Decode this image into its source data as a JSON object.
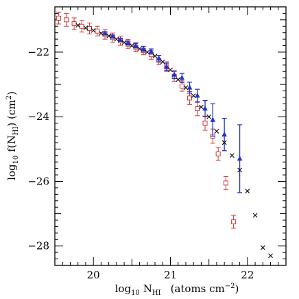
{
  "chart_data": {
    "type": "scatter",
    "xlabel": {
      "prefix": "log",
      "prefix_sub": "10",
      "var": "N",
      "var_sub": "HI",
      "units": "(atoms cm",
      "units_sup": "−2",
      "units_end": ")"
    },
    "ylabel": {
      "prefix": "log",
      "prefix_sub": "10",
      "f": "f(N",
      "f_sub": "HI",
      "f_end": ") (cm",
      "f_sup": "2",
      "end": ")"
    },
    "xlim": [
      19.5,
      22.5
    ],
    "ylim": [
      -28.6,
      -20.6
    ],
    "xticks": [
      20,
      21,
      22
    ],
    "xtick_labels": [
      "20",
      "21",
      "22"
    ],
    "yticks": [
      -22,
      -24,
      -26,
      -28
    ],
    "ytick_labels": [
      "−22",
      "−24",
      "−26",
      "−28"
    ],
    "series": [
      {
        "marker": "square",
        "color": "#cc3333",
        "points": [
          {
            "x": 19.55,
            "y": -20.95,
            "err": 0.18
          },
          {
            "x": 19.65,
            "y": -21.0,
            "err": 0.2
          },
          {
            "x": 19.75,
            "y": -21.12,
            "err": 0.18
          },
          {
            "x": 19.85,
            "y": -21.2,
            "err": 0.18
          },
          {
            "x": 19.95,
            "y": -21.27,
            "err": 0.17
          },
          {
            "x": 20.05,
            "y": -21.35,
            "err": 0.15
          },
          {
            "x": 20.15,
            "y": -21.45,
            "err": 0.15
          },
          {
            "x": 20.25,
            "y": -21.55,
            "err": 0.14
          },
          {
            "x": 20.35,
            "y": -21.65,
            "err": 0.14
          },
          {
            "x": 20.45,
            "y": -21.75,
            "err": 0.14
          },
          {
            "x": 20.55,
            "y": -21.85,
            "err": 0.14
          },
          {
            "x": 20.65,
            "y": -21.95,
            "err": 0.13
          },
          {
            "x": 20.75,
            "y": -22.08,
            "err": 0.14
          },
          {
            "x": 20.85,
            "y": -22.25,
            "err": 0.14
          },
          {
            "x": 20.95,
            "y": -22.45,
            "err": 0.15
          },
          {
            "x": 21.05,
            "y": -22.75,
            "err": 0.15
          },
          {
            "x": 21.15,
            "y": -23.05,
            "err": 0.16
          },
          {
            "x": 21.25,
            "y": -23.42,
            "err": 0.2
          },
          {
            "x": 21.35,
            "y": -23.75,
            "err": 0.22
          },
          {
            "x": 21.45,
            "y": -24.2,
            "err": 0.22
          },
          {
            "x": 21.55,
            "y": -24.6,
            "err": 0.22
          },
          {
            "x": 21.62,
            "y": -25.15,
            "err": 0.2
          },
          {
            "x": 21.72,
            "y": -26.05,
            "err": 0.2
          },
          {
            "x": 21.82,
            "y": -27.25,
            "err": 0.2
          }
        ]
      },
      {
        "marker": "triangle",
        "color": "#2233cc",
        "points": [
          {
            "x": 20.15,
            "y": -21.42,
            "err": 0.05
          },
          {
            "x": 20.25,
            "y": -21.52,
            "err": 0.05
          },
          {
            "x": 20.35,
            "y": -21.62,
            "err": 0.05
          },
          {
            "x": 20.45,
            "y": -21.72,
            "err": 0.06
          },
          {
            "x": 20.55,
            "y": -21.8,
            "err": 0.07
          },
          {
            "x": 20.65,
            "y": -21.9,
            "err": 0.08
          },
          {
            "x": 20.75,
            "y": -21.98,
            "err": 0.08
          },
          {
            "x": 20.85,
            "y": -22.2,
            "err": 0.1
          },
          {
            "x": 20.95,
            "y": -22.45,
            "err": 0.11
          },
          {
            "x": 21.05,
            "y": -22.7,
            "err": 0.12
          },
          {
            "x": 21.15,
            "y": -22.8,
            "err": 0.14
          },
          {
            "x": 21.25,
            "y": -23.1,
            "err": 0.17
          },
          {
            "x": 21.35,
            "y": -23.35,
            "err": 0.2
          },
          {
            "x": 21.45,
            "y": -23.75,
            "err": 0.25
          },
          {
            "x": 21.55,
            "y": -24.1,
            "err": 0.5
          },
          {
            "x": 21.7,
            "y": -24.55,
            "err": 0.5
          },
          {
            "x": 21.9,
            "y": -25.3,
            "err": 1.05
          }
        ]
      },
      {
        "marker": "cross",
        "color": "#000000",
        "points": [
          {
            "x": 19.8,
            "y": -21.17
          },
          {
            "x": 19.9,
            "y": -21.25
          },
          {
            "x": 20.0,
            "y": -21.33
          },
          {
            "x": 20.1,
            "y": -21.42
          },
          {
            "x": 20.2,
            "y": -21.5
          },
          {
            "x": 20.3,
            "y": -21.6
          },
          {
            "x": 20.4,
            "y": -21.7
          },
          {
            "x": 20.5,
            "y": -21.8
          },
          {
            "x": 20.6,
            "y": -21.9
          },
          {
            "x": 20.7,
            "y": -22.0
          },
          {
            "x": 20.8,
            "y": -22.12
          },
          {
            "x": 20.9,
            "y": -22.3
          },
          {
            "x": 21.0,
            "y": -22.55
          },
          {
            "x": 21.1,
            "y": -22.85
          },
          {
            "x": 21.2,
            "y": -23.1
          },
          {
            "x": 21.3,
            "y": -23.35
          },
          {
            "x": 21.4,
            "y": -23.7
          },
          {
            "x": 21.5,
            "y": -24.0
          },
          {
            "x": 21.6,
            "y": -24.45
          },
          {
            "x": 21.7,
            "y": -24.8
          },
          {
            "x": 21.8,
            "y": -25.2
          },
          {
            "x": 21.9,
            "y": -25.65
          },
          {
            "x": 22.0,
            "y": -26.3
          },
          {
            "x": 22.1,
            "y": -27.05
          },
          {
            "x": 22.2,
            "y": -28.05
          },
          {
            "x": 22.3,
            "y": -28.3
          }
        ]
      }
    ]
  }
}
